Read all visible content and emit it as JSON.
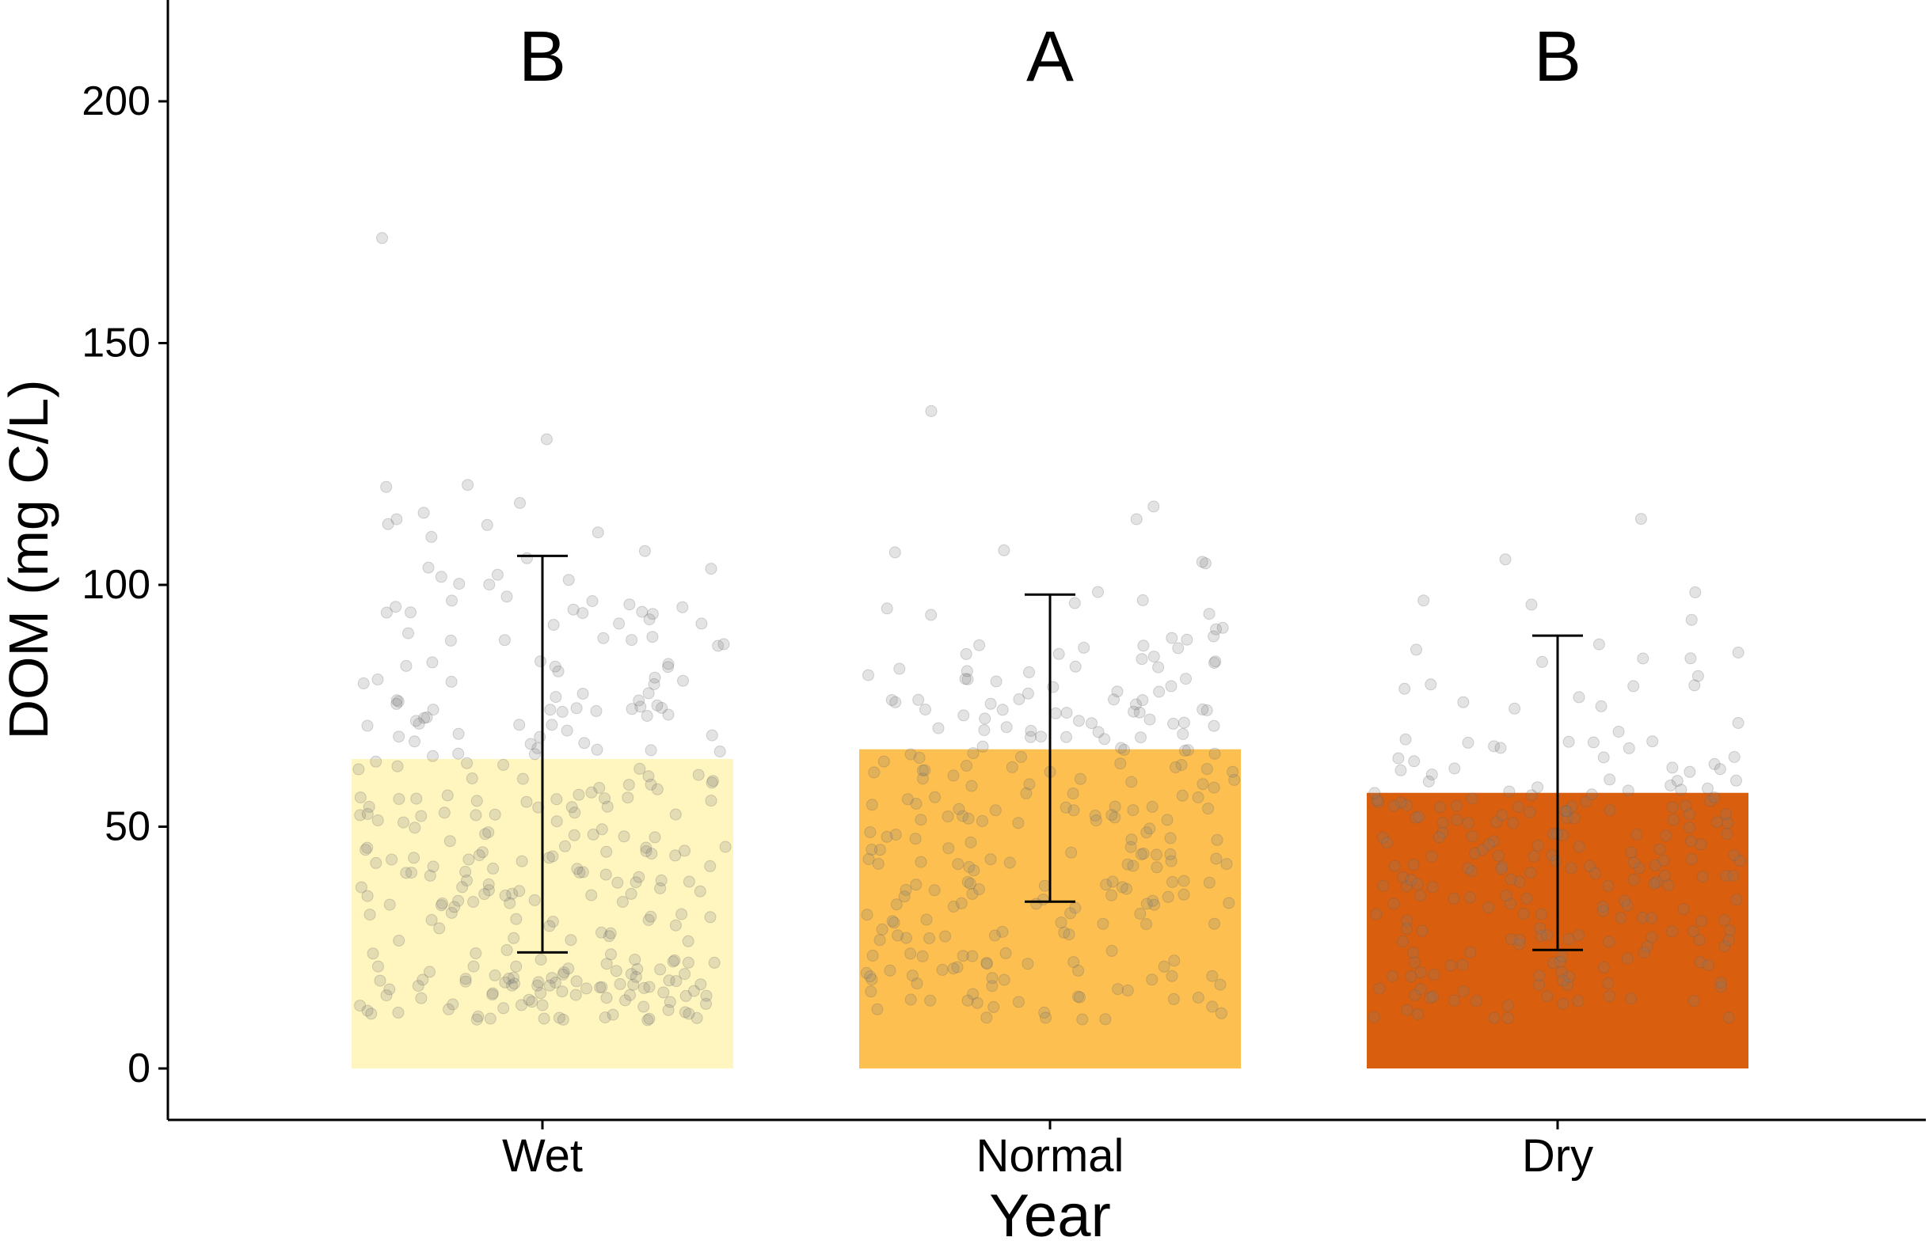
{
  "chart_data": {
    "type": "bar",
    "title": "",
    "xlabel": "Year",
    "ylabel": "DOM (mg C/L)",
    "categories": [
      "Wet",
      "Normal",
      "Dry"
    ],
    "values": [
      64,
      66,
      57
    ],
    "error_bars": [
      {
        "low": 24,
        "high": 106
      },
      {
        "low": 34.5,
        "high": 98
      },
      {
        "low": 24.5,
        "high": 89.5
      }
    ],
    "significance_letters": [
      "B",
      "A",
      "B"
    ],
    "colors": [
      "#FFF5BF",
      "#FDBF4F",
      "#D95F0E"
    ],
    "point_color": "#808080",
    "ylim": [
      -10,
      220
    ],
    "yticks": [
      0,
      50,
      100,
      150,
      200
    ],
    "grid": false,
    "legend": "none"
  }
}
